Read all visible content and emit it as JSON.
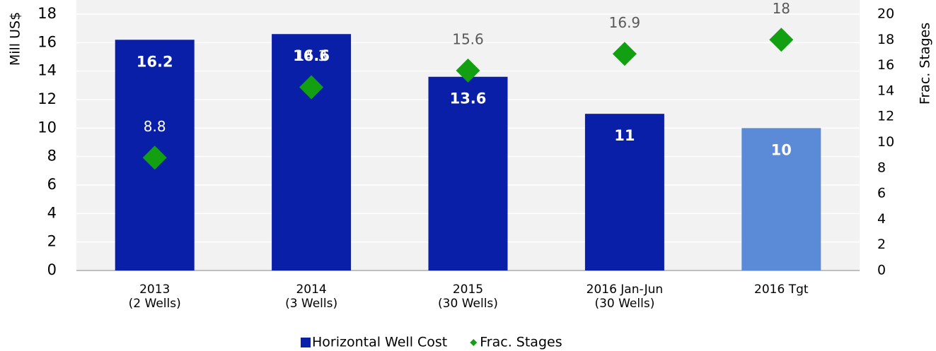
{
  "chart_data": {
    "type": "bar",
    "categories": [
      [
        "2013",
        "(2 Wells)"
      ],
      [
        "2014",
        "(3 Wells)"
      ],
      [
        "2015",
        "(30 Wells)"
      ],
      [
        "2016 Jan-Jun",
        "(30 Wells)"
      ],
      [
        "2016 Tgt"
      ]
    ],
    "series": [
      {
        "name": "Horizontal Well Cost",
        "type": "bar",
        "color": "#0a1fa8",
        "colors": [
          "#0a1fa8",
          "#0a1fa8",
          "#0a1fa8",
          "#0a1fa8",
          "#5b8ad6"
        ],
        "values": [
          16.2,
          16.6,
          13.6,
          11,
          10
        ]
      },
      {
        "name": "Frac. Stages",
        "type": "scatter",
        "axis": "y2",
        "color": "#12a012",
        "values": [
          8.8,
          14.3,
          15.6,
          16.9,
          18
        ]
      }
    ],
    "ylabel": "Mill US$",
    "y2label": "Frac. Stages",
    "ylim": [
      0,
      18
    ],
    "yticks": [
      0,
      2,
      4,
      6,
      8,
      10,
      12,
      14,
      16,
      18
    ],
    "y2lim": [
      0,
      20
    ],
    "y2ticks": [
      0,
      2,
      4,
      6,
      8,
      10,
      12,
      14,
      16,
      18,
      20
    ],
    "grid": true,
    "legend": "bottom"
  }
}
